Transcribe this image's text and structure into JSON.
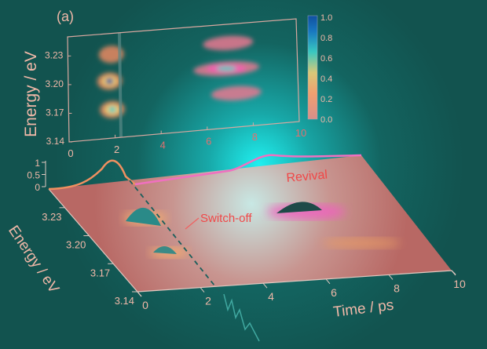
{
  "panel_label": "(a)",
  "chart_data": [
    {
      "type": "heatmap",
      "xlabel": "",
      "ylabel": "Energy / eV",
      "xlim": [
        0,
        10
      ],
      "ylim": [
        3.14,
        3.25
      ],
      "xticks": [
        "0",
        "2",
        "4",
        "6",
        "8",
        "10"
      ],
      "yticks": [
        "3.14",
        "3.17",
        "3.20",
        "3.23"
      ],
      "colorbar": {
        "range": [
          0,
          1
        ],
        "ticks": [
          "0.0",
          "0.2",
          "0.4",
          "0.6",
          "0.8",
          "1.0"
        ],
        "colors": [
          "#d98f8a",
          "#f0a070",
          "#e8e070",
          "#38c8c0",
          "#1878c0",
          "#1050a0"
        ]
      },
      "peaks": [
        {
          "time": 1.9,
          "energy": 3.228,
          "amplitude": 0.3
        },
        {
          "time": 1.8,
          "energy": 3.2,
          "amplitude": 1.0
        },
        {
          "time": 1.9,
          "energy": 3.17,
          "amplitude": 0.65
        },
        {
          "time": 7.0,
          "energy": 3.23,
          "amplitude": 0.1
        },
        {
          "time": 6.9,
          "energy": 3.203,
          "amplitude": 0.6
        },
        {
          "time": 7.3,
          "energy": 3.176,
          "amplitude": 0.2
        }
      ],
      "switch_off_time": 2.2
    },
    {
      "type": "area",
      "xlabel": "Time / ps",
      "ylabel": "Energy / eV",
      "xlim": [
        0,
        10
      ],
      "xticks": [
        "0",
        "2",
        "4",
        "6",
        "8",
        "10"
      ],
      "yticks": [
        "3.14",
        "3.17",
        "3.20",
        "3.23"
      ],
      "zticks": [
        "0",
        "0.5",
        "1"
      ],
      "annotations": [
        "Switch-off",
        "Revival"
      ],
      "colors": {
        "early": "#f08860",
        "revival": "#f060b0",
        "annotation": "#f04848"
      }
    }
  ]
}
